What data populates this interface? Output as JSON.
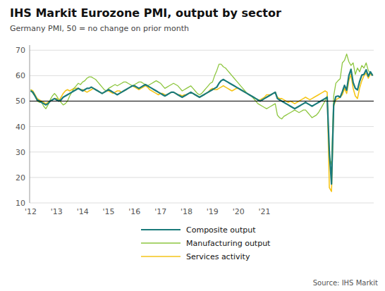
{
  "chart_data": {
    "type": "line",
    "title": "IHS Markit Eurozone PMI, output by sector",
    "subtitle": "Germany PMI, 50 = no change on prior month",
    "source": "Source: IHS Markit",
    "ylim": [
      10,
      72
    ],
    "yticks": [
      10,
      20,
      30,
      40,
      50,
      60,
      70
    ],
    "reference_line": 50,
    "grid": true,
    "legend": "bottom",
    "categories": [
      "'12",
      null,
      null,
      null,
      null,
      null,
      null,
      null,
      null,
      null,
      null,
      null,
      "'13",
      null,
      null,
      null,
      null,
      null,
      null,
      null,
      null,
      null,
      null,
      null,
      "'14",
      null,
      null,
      null,
      null,
      null,
      null,
      null,
      null,
      null,
      null,
      null,
      "'15",
      null,
      null,
      null,
      null,
      null,
      null,
      null,
      null,
      null,
      null,
      null,
      "'16",
      null,
      null,
      null,
      null,
      null,
      null,
      null,
      null,
      null,
      null,
      null,
      "'17",
      null,
      null,
      null,
      null,
      null,
      null,
      null,
      null,
      null,
      null,
      null,
      "'18",
      null,
      null,
      null,
      null,
      null,
      null,
      null,
      null,
      null,
      null,
      null,
      "'19",
      null,
      null,
      null,
      null,
      null,
      null,
      null,
      null,
      null,
      null,
      null,
      "'20",
      null,
      null,
      null,
      null,
      null,
      null,
      null,
      null,
      null,
      null,
      null,
      "'21",
      null,
      null,
      null,
      null,
      null,
      null,
      null,
      null,
      null,
      null,
      null,
      null,
      null,
      null,
      null,
      null,
      null,
      null,
      null,
      null,
      null,
      null,
      null,
      null,
      null,
      null,
      null,
      null,
      null,
      null,
      null,
      null,
      null,
      null,
      null,
      null,
      null,
      null,
      null,
      null,
      null,
      null,
      null,
      null,
      null,
      null,
      null,
      null,
      null,
      null
    ],
    "series": [
      {
        "name": "Composite output",
        "color": "#1a7a7a",
        "values": [
          54.0,
          53.5,
          52.0,
          50.5,
          50.0,
          49.5,
          49.0,
          48.5,
          49.0,
          50.0,
          50.5,
          51.0,
          50.5,
          50.0,
          50.5,
          51.5,
          52.0,
          52.5,
          53.0,
          53.5,
          54.0,
          54.5,
          55.0,
          54.5,
          54.0,
          54.5,
          55.0,
          55.0,
          55.5,
          55.0,
          54.5,
          54.0,
          53.5,
          53.0,
          53.5,
          54.0,
          54.5,
          54.0,
          53.5,
          53.0,
          52.5,
          53.0,
          53.5,
          54.0,
          54.5,
          55.0,
          55.5,
          56.0,
          56.0,
          55.5,
          55.0,
          55.5,
          56.0,
          56.5,
          56.0,
          55.5,
          55.0,
          54.5,
          54.0,
          53.5,
          53.0,
          52.5,
          52.0,
          52.5,
          53.0,
          53.5,
          53.5,
          53.0,
          52.5,
          52.0,
          51.5,
          52.0,
          52.5,
          53.0,
          53.5,
          53.0,
          52.5,
          52.0,
          51.5,
          52.0,
          52.5,
          53.0,
          53.5,
          54.0,
          54.5,
          55.0,
          55.5,
          57.0,
          58.0,
          58.5,
          58.0,
          57.5,
          57.0,
          56.5,
          56.0,
          55.5,
          55.0,
          54.5,
          54.0,
          53.5,
          53.0,
          52.5,
          52.0,
          51.5,
          51.0,
          50.5,
          50.0,
          50.5,
          51.0,
          51.5,
          52.0,
          52.5,
          53.0,
          53.5,
          51.0,
          50.5,
          50.0,
          49.5,
          49.0,
          48.5,
          48.0,
          47.5,
          47.0,
          47.5,
          48.0,
          48.5,
          49.0,
          49.5,
          49.0,
          48.5,
          48.0,
          48.5,
          49.0,
          49.5,
          50.0,
          50.5,
          51.0,
          51.5,
          30.0,
          17.4,
          48.5,
          51.8,
          52.0,
          51.5,
          53.7,
          56.2,
          54.3,
          60.0,
          62.5,
          57.3,
          55.0,
          54.4,
          57.8,
          60.2,
          60.5,
          62.3,
          59.8,
          61.5,
          60.0
        ]
      },
      {
        "name": "Manufacturing output",
        "color": "#8dc63f",
        "values": [
          54.5,
          53.0,
          52.0,
          50.0,
          49.5,
          49.5,
          48.0,
          47.0,
          48.5,
          50.5,
          52.0,
          53.0,
          52.0,
          50.5,
          49.5,
          48.5,
          49.0,
          50.0,
          52.0,
          53.5,
          55.0,
          56.0,
          57.0,
          56.5,
          57.5,
          58.0,
          59.0,
          59.5,
          59.5,
          59.0,
          58.5,
          57.5,
          56.5,
          55.5,
          54.5,
          54.0,
          55.0,
          55.5,
          56.0,
          56.5,
          56.0,
          56.5,
          57.0,
          57.5,
          57.5,
          57.0,
          56.5,
          56.0,
          56.5,
          57.0,
          57.5,
          57.5,
          57.0,
          56.5,
          56.0,
          56.5,
          57.0,
          57.5,
          58.0,
          57.5,
          57.0,
          56.0,
          55.0,
          55.5,
          56.0,
          56.5,
          57.0,
          56.5,
          56.0,
          55.0,
          54.0,
          54.5,
          55.0,
          55.5,
          56.0,
          55.0,
          54.0,
          53.0,
          52.5,
          53.0,
          54.0,
          55.0,
          56.0,
          57.0,
          57.5,
          60.0,
          62.0,
          64.5,
          64.5,
          63.5,
          63.0,
          62.0,
          61.0,
          60.0,
          59.0,
          58.0,
          57.0,
          56.0,
          55.0,
          54.0,
          53.0,
          52.5,
          52.0,
          51.0,
          50.0,
          49.0,
          48.5,
          48.0,
          47.5,
          47.0,
          47.5,
          48.0,
          48.5,
          49.0,
          44.5,
          43.5,
          43.0,
          44.0,
          44.5,
          45.0,
          45.5,
          46.0,
          46.5,
          46.0,
          45.5,
          46.0,
          46.5,
          46.5,
          45.5,
          44.5,
          43.5,
          44.0,
          44.5,
          45.5,
          47.0,
          48.5,
          50.0,
          52.0,
          28.0,
          25.0,
          52.0,
          57.0,
          58.0,
          58.8,
          65.0,
          66.0,
          68.5,
          65.5,
          64.0,
          65.0,
          60.5,
          63.0,
          61.5,
          64.0,
          63.0,
          65.0,
          62.0,
          61.0,
          60.5
        ]
      },
      {
        "name": "Services activity",
        "color": "#f5c518",
        "values": [
          54.5,
          54.0,
          52.5,
          51.0,
          50.5,
          50.0,
          49.5,
          49.0,
          49.5,
          50.0,
          50.5,
          51.0,
          51.0,
          50.0,
          51.5,
          53.0,
          54.0,
          54.5,
          54.0,
          54.5,
          55.0,
          55.0,
          55.0,
          54.5,
          54.5,
          54.0,
          53.5,
          54.0,
          54.5,
          55.0,
          54.5,
          54.0,
          53.5,
          53.0,
          53.5,
          54.0,
          54.0,
          53.5,
          53.0,
          53.5,
          54.0,
          54.0,
          53.5,
          54.0,
          54.5,
          55.0,
          55.5,
          56.0,
          55.5,
          55.0,
          54.5,
          55.0,
          55.5,
          56.0,
          55.5,
          54.5,
          54.0,
          53.5,
          53.0,
          52.5,
          53.0,
          53.0,
          52.5,
          52.5,
          53.0,
          53.5,
          53.5,
          53.0,
          52.5,
          52.5,
          52.0,
          52.5,
          52.5,
          53.0,
          53.5,
          53.0,
          52.5,
          52.0,
          51.5,
          52.0,
          52.5,
          53.0,
          53.5,
          54.5,
          55.0,
          54.5,
          54.5,
          55.0,
          55.5,
          56.0,
          55.5,
          55.0,
          54.5,
          54.0,
          54.5,
          55.0,
          55.0,
          54.5,
          54.0,
          53.5,
          53.0,
          52.5,
          52.0,
          51.5,
          51.0,
          50.5,
          50.5,
          51.0,
          51.5,
          52.5,
          52.5,
          52.5,
          53.0,
          53.5,
          51.5,
          51.0,
          51.0,
          50.5,
          50.0,
          49.5,
          50.0,
          49.5,
          49.0,
          49.5,
          50.0,
          50.5,
          51.0,
          51.5,
          51.0,
          50.5,
          51.0,
          51.5,
          52.0,
          52.5,
          53.0,
          53.5,
          54.0,
          53.5,
          16.0,
          14.5,
          48.0,
          50.5,
          51.0,
          51.5,
          52.5,
          55.0,
          53.0,
          58.0,
          60.5,
          55.0,
          52.0,
          51.0,
          55.2,
          58.0,
          60.0,
          61.0,
          59.0,
          60.8,
          60.0
        ]
      }
    ]
  }
}
